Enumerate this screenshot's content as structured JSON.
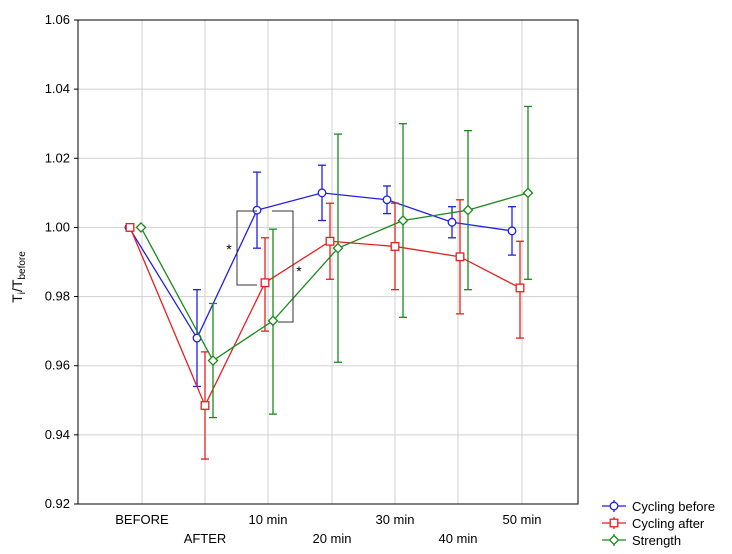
{
  "chart_data": {
    "type": "line",
    "title": "",
    "xlabel": "",
    "ylabel": "Ti/Tbefore",
    "ylabel_parts": {
      "main": "T",
      "sub1": "i",
      "slash": "/T",
      "sub2": "before"
    },
    "categories": [
      "BEFORE",
      "AFTER",
      "10 min",
      "20 min",
      "30 min",
      "40 min",
      "50 min"
    ],
    "ylim": [
      0.92,
      1.06
    ],
    "yticks": [
      "0.92",
      "0.94",
      "0.96",
      "0.98",
      "1.00",
      "1.02",
      "1.04",
      "1.06"
    ],
    "grid": true,
    "legend_position": "bottom-right",
    "series": [
      {
        "name": "Cycling before",
        "color": "#1f1fe6",
        "marker": "circle",
        "values": [
          1.0,
          0.968,
          1.005,
          1.01,
          1.008,
          1.0015,
          0.999
        ],
        "err_low": [
          1.0,
          0.954,
          0.994,
          1.002,
          1.004,
          0.997,
          0.992
        ],
        "err_high": [
          1.0,
          0.982,
          1.016,
          1.018,
          1.012,
          1.006,
          1.006
        ]
      },
      {
        "name": "Cycling after",
        "color": "#e61f1f",
        "marker": "square",
        "values": [
          1.0,
          0.9485,
          0.984,
          0.996,
          0.9945,
          0.9915,
          0.9825
        ],
        "err_low": [
          1.0,
          0.933,
          0.97,
          0.985,
          0.982,
          0.975,
          0.968
        ],
        "err_high": [
          1.0,
          0.964,
          0.997,
          1.007,
          1.007,
          1.008,
          0.996
        ]
      },
      {
        "name": "Strength",
        "color": "#1a8a1a",
        "marker": "diamond",
        "values": [
          1.0,
          0.9615,
          0.973,
          0.994,
          1.002,
          1.005,
          1.01
        ],
        "err_low": [
          1.0,
          0.945,
          0.946,
          0.961,
          0.974,
          0.982,
          0.985
        ],
        "err_high": [
          1.0,
          0.978,
          0.9995,
          1.027,
          1.03,
          1.028,
          1.035
        ]
      }
    ],
    "annotations": [
      {
        "text": "*",
        "between": "Cycling before vs Cycling after",
        "category": "10 min"
      },
      {
        "text": "*",
        "between": "Cycling before vs Strength",
        "category": "10 min"
      }
    ]
  }
}
